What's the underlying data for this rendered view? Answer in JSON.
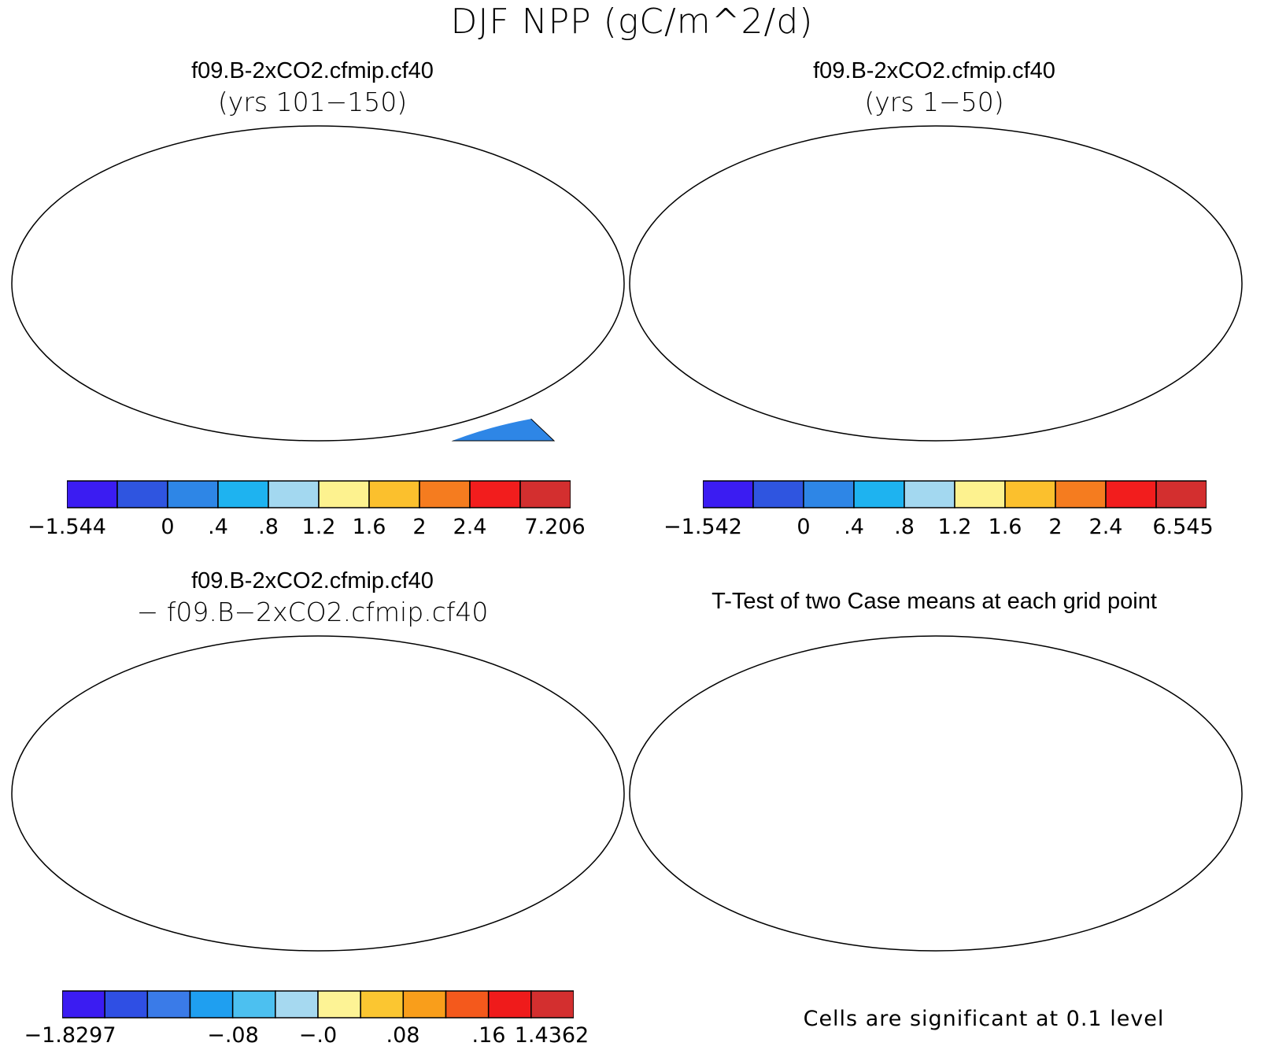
{
  "main_title": "DJF NPP (gC/m^2/d)",
  "panels": [
    {
      "id": "case1",
      "title": "f09.B-2xCO2.cfmip.cf40",
      "subtitle": "(yrs 101−150)",
      "colorbar": {
        "colors": [
          "#3b1cf2",
          "#2f55e0",
          "#2e86e6",
          "#1eb3f0",
          "#a3d8f0",
          "#fdf28f",
          "#fbc02d",
          "#f57c1f",
          "#f21d1d",
          "#d32f2f"
        ],
        "labels": [
          "−1.544",
          "0",
          ".4",
          ".8",
          "1.2",
          "1.6",
          "2",
          "2.4",
          "7.206"
        ]
      }
    },
    {
      "id": "case2",
      "title": "f09.B-2xCO2.cfmip.cf40",
      "subtitle": "(yrs 1−50)",
      "colorbar": {
        "colors": [
          "#3b1cf2",
          "#2f55e0",
          "#2e86e6",
          "#1eb3f0",
          "#a3d8f0",
          "#fdf28f",
          "#fbc02d",
          "#f57c1f",
          "#f21d1d",
          "#d32f2f"
        ],
        "labels": [
          "−1.542",
          "0",
          ".4",
          ".8",
          "1.2",
          "1.6",
          "2",
          "2.4",
          "6.545"
        ]
      }
    },
    {
      "id": "diff",
      "title": "f09.B-2xCO2.cfmip.cf40",
      "subtitle": "− f09.B−2xCO2.cfmip.cf40",
      "colorbar": {
        "colors": [
          "#3b1cf2",
          "#2f4fe4",
          "#3a7be8",
          "#1f9ff0",
          "#4cc0f0",
          "#a6d9f0",
          "#fdf395",
          "#fbc631",
          "#f99e1b",
          "#f4591c",
          "#ef1b1b",
          "#d32f2f"
        ],
        "labels": [
          "−1.8297",
          "−.08",
          "−.0",
          ".08",
          ".16",
          "1.4362"
        ]
      }
    },
    {
      "id": "ttest",
      "title": "T-Test of two Case means at each grid point",
      "note": "Cells are significant at 0.1 level"
    }
  ]
}
